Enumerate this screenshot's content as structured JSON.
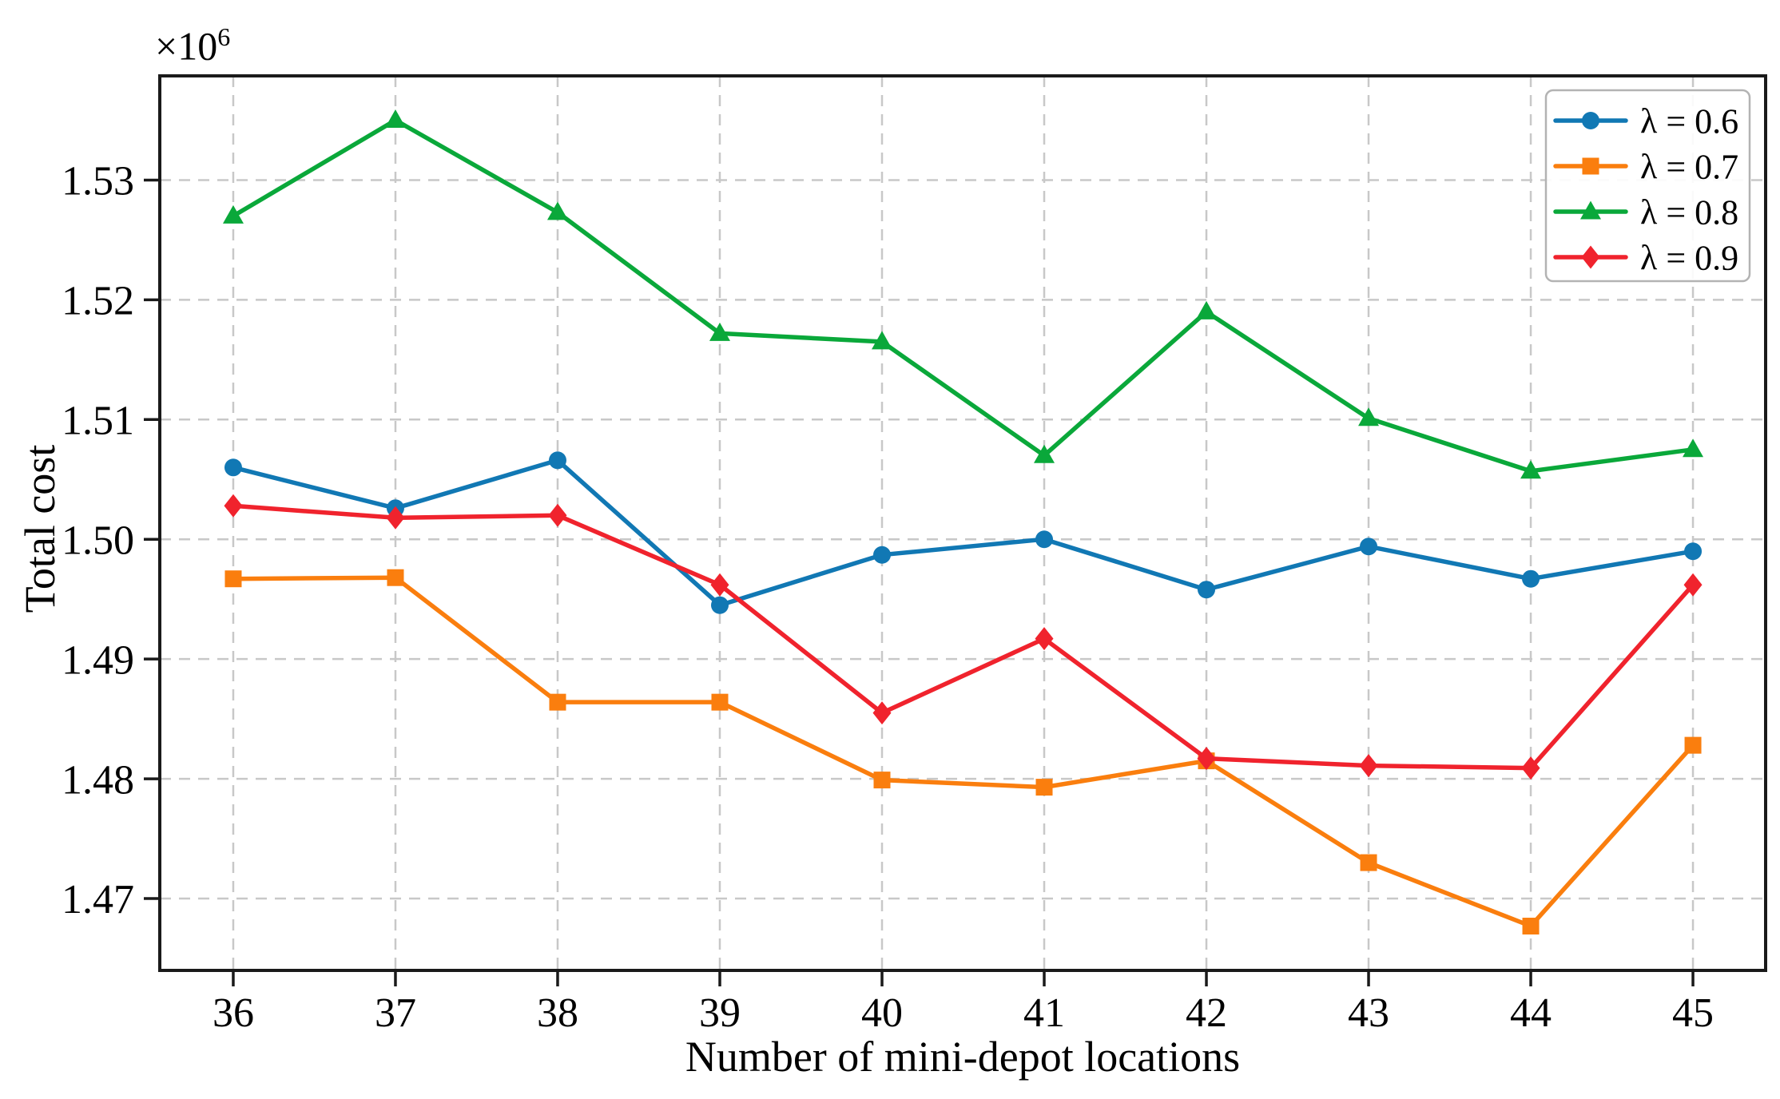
{
  "figure": {
    "offset_label": "×10",
    "offset_exponent": "6",
    "x_axis_label": "Number of mini-depot locations",
    "y_axis_label": "Total cost"
  },
  "colors": {
    "frame": "#1a1a1a",
    "grid": "#c8c8c8",
    "legend_border": "#b3b3b3",
    "background": "#ffffff",
    "series_blue": "#1178b4",
    "series_orange": "#fa7e0e",
    "series_green": "#0aa83a",
    "series_red": "#f0232d"
  },
  "chart_data": {
    "type": "line",
    "title": "",
    "xlabel": "Number of mini-depot locations",
    "ylabel": "Total cost",
    "y_offset_text": "×10⁶",
    "unit_multiplier": 1000000,
    "x": [
      36,
      37,
      38,
      39,
      40,
      41,
      42,
      43,
      44,
      45
    ],
    "x_tick_labels": [
      "36",
      "37",
      "38",
      "39",
      "40",
      "41",
      "42",
      "43",
      "44",
      "45"
    ],
    "y_ticks_millions": [
      1.47,
      1.48,
      1.49,
      1.5,
      1.51,
      1.52,
      1.53
    ],
    "y_tick_labels": [
      "1.47",
      "1.48",
      "1.49",
      "1.50",
      "1.51",
      "1.52",
      "1.53"
    ],
    "xlim": [
      35.547,
      45.448
    ],
    "ylim_millions": [
      1.464,
      1.5387
    ],
    "grid": true,
    "grid_style": "dashed",
    "legend_position": "upper right",
    "series": [
      {
        "name": "λ = 0.6",
        "marker": "circle",
        "color": "#1178b4",
        "values_millions": [
          1.506,
          1.5026,
          1.5066,
          1.4945,
          1.4987,
          1.5,
          1.4958,
          1.4994,
          1.4967,
          1.499
        ]
      },
      {
        "name": "λ = 0.7",
        "marker": "square",
        "color": "#fa7e0e",
        "values_millions": [
          1.4967,
          1.4968,
          1.4864,
          1.4864,
          1.4799,
          1.4793,
          1.4815,
          1.473,
          1.4677,
          1.4828
        ]
      },
      {
        "name": "λ = 0.8",
        "marker": "triangle",
        "color": "#0aa83a",
        "values_millions": [
          1.527,
          1.535,
          1.5273,
          1.5172,
          1.5165,
          1.507,
          1.519,
          1.5101,
          1.5057,
          1.5075
        ]
      },
      {
        "name": "λ = 0.9",
        "marker": "diamond",
        "color": "#f0232d",
        "values_millions": [
          1.5028,
          1.5018,
          1.502,
          1.4962,
          1.4855,
          1.4917,
          1.4817,
          1.4811,
          1.4809,
          1.4962
        ]
      }
    ]
  }
}
